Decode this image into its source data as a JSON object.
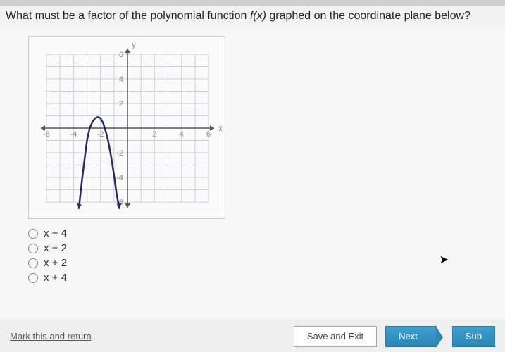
{
  "question": {
    "prefix": "What must be a factor of the polynomial function ",
    "fn": "f(x)",
    "suffix": " graphed on the coordinate plane below?"
  },
  "graph": {
    "type": "line",
    "xlim": [
      -6,
      6
    ],
    "ylim": [
      -6,
      6
    ],
    "tick_step": 2,
    "x_ticks": [
      -6,
      -4,
      -2,
      2,
      4,
      6
    ],
    "y_ticks": [
      -6,
      -4,
      -2,
      2,
      4,
      6
    ],
    "x_label": "x",
    "y_label": "y",
    "grid_color": "#c8d0da",
    "axis_color": "#555",
    "label_color": "#888",
    "tick_fontsize": 11,
    "axis_label_fontsize": 12,
    "curve_color": "#2a2a6b",
    "curve_width": 2.5,
    "background": "#fafafa",
    "curve_points": [
      [
        -3.6,
        -6.5
      ],
      [
        -3.4,
        -4.5
      ],
      [
        -3.2,
        -2.7
      ],
      [
        -3.0,
        -1.0
      ],
      [
        -2.8,
        0.0
      ],
      [
        -2.6,
        0.5
      ],
      [
        -2.4,
        0.8
      ],
      [
        -2.2,
        0.9
      ],
      [
        -2.0,
        0.8
      ],
      [
        -1.8,
        0.4
      ],
      [
        -1.6,
        -0.3
      ],
      [
        -1.4,
        -1.2
      ],
      [
        -1.2,
        -2.4
      ],
      [
        -1.0,
        -3.8
      ],
      [
        -0.8,
        -5.4
      ],
      [
        -0.6,
        -6.5
      ]
    ]
  },
  "options": [
    {
      "label": "x − 4"
    },
    {
      "label": "x − 2"
    },
    {
      "label": "x + 2"
    },
    {
      "label": "x + 4"
    }
  ],
  "footer": {
    "mark": "Mark this and return",
    "save": "Save and Exit",
    "next": "Next",
    "submit": "Sub"
  }
}
